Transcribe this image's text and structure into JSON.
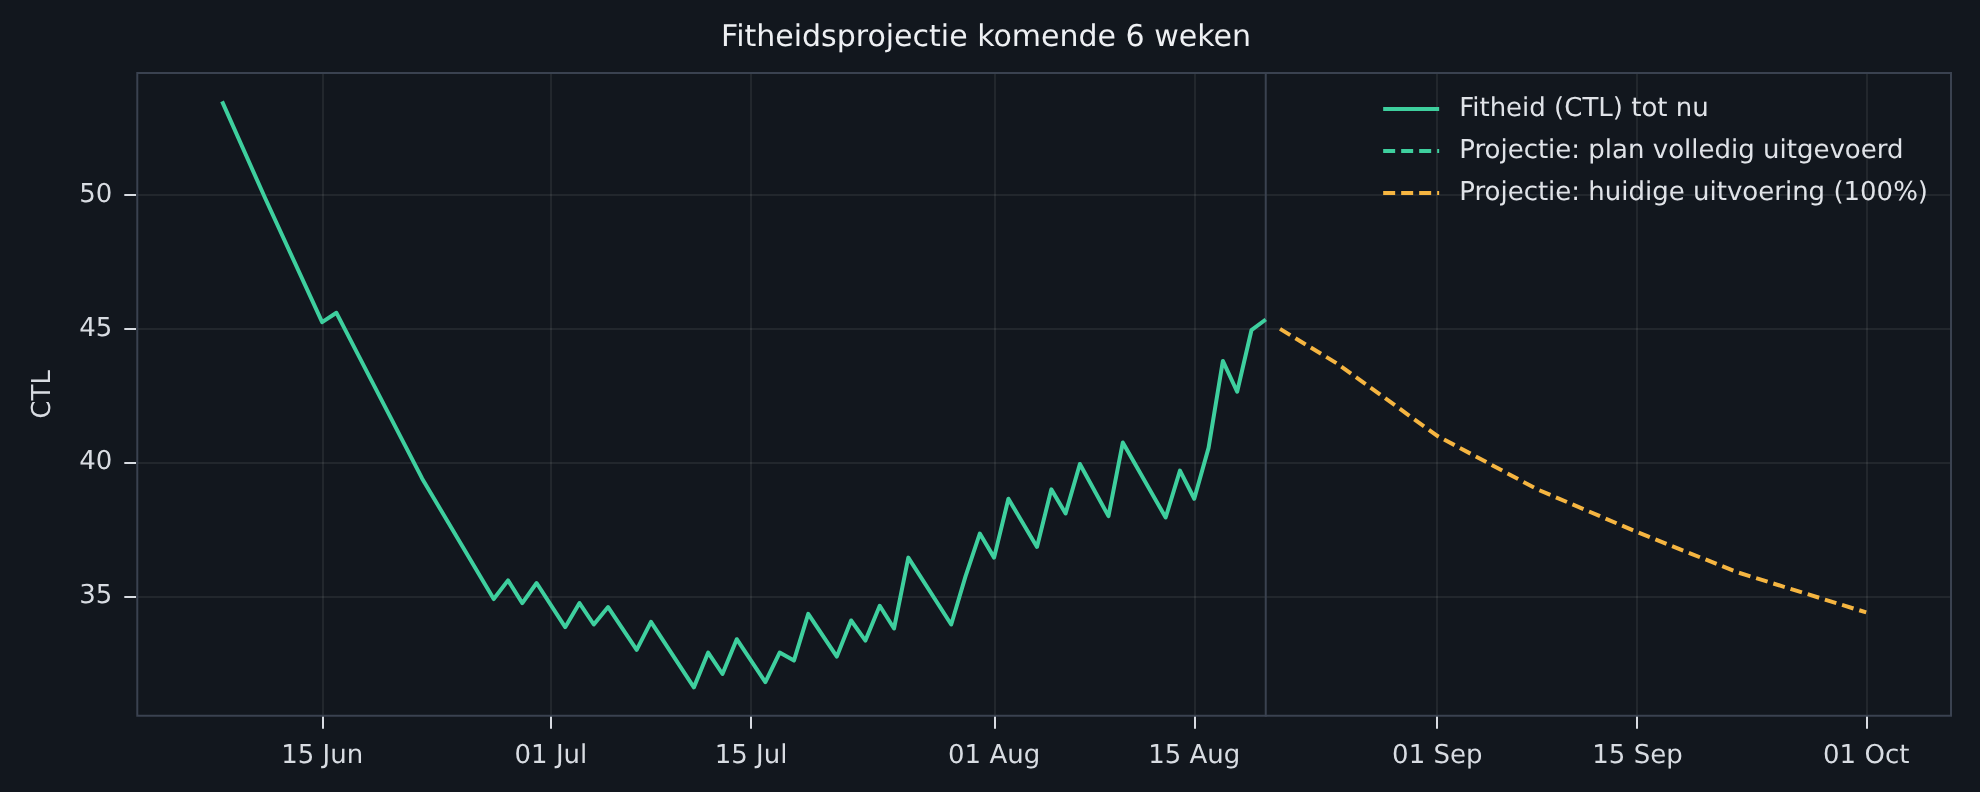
{
  "chart_data": {
    "type": "line",
    "title": "Fitheidsprojectie komende 6 weken",
    "ylabel": "CTL",
    "xlim": [
      "--06-02",
      "--10-07"
    ],
    "xticks": [
      {
        "value": "--06-15",
        "label": "15 Jun"
      },
      {
        "value": "--07-01",
        "label": "01 Jul"
      },
      {
        "value": "--07-15",
        "label": "15 Jul"
      },
      {
        "value": "--08-01",
        "label": "01 Aug"
      },
      {
        "value": "--08-15",
        "label": "15 Aug"
      },
      {
        "value": "--09-01",
        "label": "01 Sep"
      },
      {
        "value": "--09-15",
        "label": "15 Sep"
      },
      {
        "value": "--10-01",
        "label": "01 Oct"
      }
    ],
    "ylim": [
      30.5,
      54.6
    ],
    "yticks": [
      35,
      40,
      45,
      50
    ],
    "grid": true,
    "legend": "top right",
    "marker": "none",
    "ref_lines": [
      {
        "axis": "x",
        "value": "--08-20",
        "color": "#3a4250"
      }
    ],
    "series": [
      {
        "name": "Fitheid (CTL) tot nu",
        "color": "#3ecf9e",
        "line_style": "solid",
        "x": [
          "--06-08",
          "--06-11",
          "--06-15",
          "--06-16",
          "--06-22",
          "--06-27",
          "--06-28",
          "--06-29",
          "--06-30",
          "--07-02",
          "--07-03",
          "--07-04",
          "--07-05",
          "--07-07",
          "--07-08",
          "--07-11",
          "--07-12",
          "--07-13",
          "--07-14",
          "--07-16",
          "--07-17",
          "--07-18",
          "--07-19",
          "--07-21",
          "--07-22",
          "--07-23",
          "--07-24",
          "--07-25",
          "--07-26",
          "--07-29",
          "--07-30",
          "--07-31",
          "--08-01",
          "--08-02",
          "--08-04",
          "--08-05",
          "--08-06",
          "--08-07",
          "--08-09",
          "--08-10",
          "--08-13",
          "--08-14",
          "--08-15",
          "--08-16",
          "--08-17",
          "--08-18",
          "--08-19",
          "--08-20"
        ],
        "values": [
          53.5,
          49.9,
          45.25,
          45.6,
          39.4,
          34.9,
          35.6,
          34.75,
          35.5,
          33.85,
          34.75,
          33.95,
          34.6,
          33.0,
          34.05,
          31.6,
          32.9,
          32.1,
          33.4,
          31.8,
          32.9,
          32.6,
          34.35,
          32.75,
          34.1,
          33.35,
          34.65,
          33.8,
          36.45,
          33.95,
          35.75,
          37.35,
          36.45,
          38.65,
          36.85,
          39.0,
          38.1,
          39.95,
          38.0,
          40.75,
          37.95,
          39.7,
          38.65,
          40.55,
          43.8,
          42.65,
          44.95,
          45.35
        ]
      },
      {
        "name": "Projectie: plan volledig uitgevoerd",
        "color": "#3ecf9e",
        "line_style": "dashed"
      },
      {
        "name": "Projectie: huidige uitvoering (100%)",
        "color": "#f5b541",
        "line_style": "dashed",
        "x": [
          "--08-21",
          "--08-25",
          "--09-01",
          "--09-08",
          "--09-15",
          "--09-22",
          "--10-01"
        ],
        "values": [
          45.0,
          43.7,
          41.0,
          39.0,
          37.4,
          35.9,
          34.4
        ]
      }
    ]
  }
}
